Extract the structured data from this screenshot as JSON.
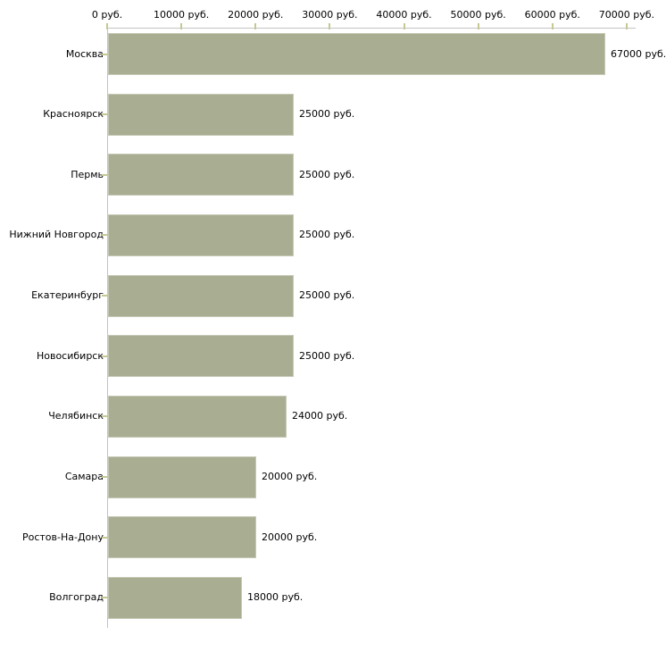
{
  "page": {
    "background": "#ffffff"
  },
  "chart_data": {
    "type": "bar",
    "orientation": "horizontal",
    "title": "",
    "xlabel": "",
    "ylabel": "",
    "unit": "руб.",
    "categories": [
      "Москва",
      "Красноярск",
      "Пермь",
      "Нижний Новгород",
      "Екатеринбург",
      "Новосибирск",
      "Челябинск",
      "Самара",
      "Ростов-На-Дону",
      "Волгоград"
    ],
    "values": [
      67000,
      25000,
      25000,
      25000,
      25000,
      25000,
      24000,
      20000,
      20000,
      18000
    ],
    "value_labels": [
      "67000 руб.",
      "25000 руб.",
      "25000 руб.",
      "25000 руб.",
      "25000 руб.",
      "25000 руб.",
      "24000 руб.",
      "20000 руб.",
      "20000 руб.",
      "18000 руб."
    ],
    "x_ticks": [
      0,
      10000,
      20000,
      30000,
      40000,
      50000,
      60000,
      70000
    ],
    "x_tick_labels": [
      "0 руб.",
      "10000 руб.",
      "20000 руб.",
      "30000 руб.",
      "40000 руб.",
      "50000 руб.",
      "60000 руб.",
      "70000 руб."
    ],
    "xlim": [
      0,
      70000
    ],
    "grid": false,
    "legend_position": "none",
    "style": {
      "bar_color": "#a9ae93",
      "bar_border_color": "#c6c9b5",
      "axis_line_color": "#c3c3c3",
      "tick_color": "#c5c893",
      "text_color": "#000000",
      "background": "#ffffff"
    }
  }
}
